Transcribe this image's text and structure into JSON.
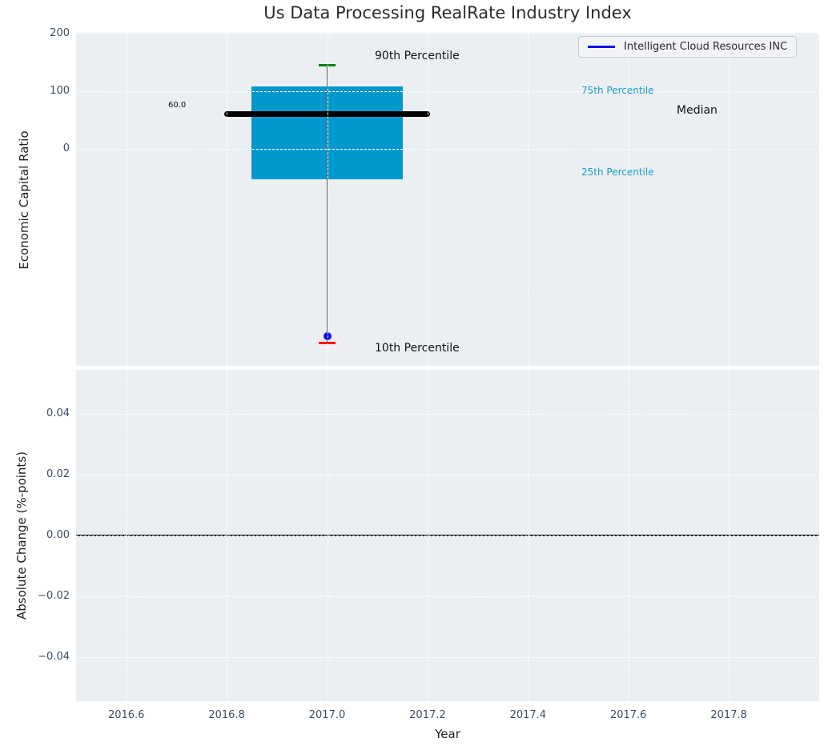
{
  "title": "Us Data Processing RealRate Industry Index",
  "legend": {
    "label": "Intelligent Cloud Resources INC",
    "line_color": "#0f0fe6"
  },
  "annotations": {
    "p90": "90th Percentile",
    "p10": "10th Percentile",
    "p75": "75th Percentile",
    "p25": "25th Percentile",
    "median": "Median",
    "median_value": "60.0"
  },
  "axes": {
    "top": {
      "ylabel": "Economic Capital Ratio",
      "yticks": [
        {
          "v": 200,
          "t": "200"
        },
        {
          "v": 100,
          "t": "100"
        },
        {
          "v": 0,
          "t": "0"
        }
      ]
    },
    "bottom": {
      "ylabel": "Absolute Change (%-points)",
      "xlabel": "Year",
      "yticks": [
        {
          "v": 0.04,
          "t": "0.04"
        },
        {
          "v": 0.02,
          "t": "0.02"
        },
        {
          "v": 0,
          "t": "0.00"
        },
        {
          "v": -0.02,
          "t": "−0.02"
        },
        {
          "v": -0.04,
          "t": "−0.04"
        }
      ],
      "xticks": [
        {
          "v": 2016.6,
          "t": "2016.6"
        },
        {
          "v": 2016.8,
          "t": "2016.8"
        },
        {
          "v": 2017.0,
          "t": "2017.0"
        },
        {
          "v": 2017.2,
          "t": "2017.2"
        },
        {
          "v": 2017.4,
          "t": "2017.4"
        },
        {
          "v": 2017.6,
          "t": "2017.6"
        },
        {
          "v": 2017.8,
          "t": "2017.8"
        }
      ]
    }
  },
  "colors": {
    "figure_bg": "#ffffff",
    "plot_bg": "#eceff1",
    "grid": "#ffffff",
    "tick_label": "#3d4e60",
    "text": "#1f1f1f",
    "box_fill": "#0099ce",
    "median": "#000000",
    "whisker": "#606060",
    "cap_90": "#008000",
    "cap_10": "#ff0000",
    "company_dot": "#0f0fe6",
    "percentile_label": "#1a9fcb",
    "zero_line": "#000000"
  },
  "chart_data": [
    {
      "type": "box",
      "title": "Us Data Processing RealRate Industry Index",
      "ylabel": "Economic Capital Ratio",
      "xlabel": "Year",
      "x": 2017.0,
      "box_width": 0.3,
      "median_line_halfwidth": 0.205,
      "percentiles": {
        "p90": 145,
        "p75": 108,
        "median": 60.0,
        "p25": -53,
        "p10": -337
      },
      "company_point": {
        "name": "Intelligent Cloud Resources INC",
        "x": 2017.0,
        "y": -326
      },
      "ylim": [
        -377,
        201
      ],
      "xlim": [
        2016.5,
        2017.98
      ],
      "yticks": [
        200,
        100,
        0
      ],
      "grid": true,
      "legend_position": "upper right"
    },
    {
      "type": "line",
      "ylabel": "Absolute Change (%-points)",
      "xlabel": "Year",
      "series": [
        {
          "name": "zero-reference-line",
          "x": [
            2016.5,
            2017.98
          ],
          "y": [
            0,
            0
          ],
          "color": "#000000"
        }
      ],
      "ylim": [
        -0.0545,
        0.0545
      ],
      "xlim": [
        2016.5,
        2017.98
      ],
      "yticks": [
        0.04,
        0.02,
        0.0,
        -0.02,
        -0.04
      ],
      "xticks": [
        2016.6,
        2016.8,
        2017.0,
        2017.2,
        2017.4,
        2017.6,
        2017.8
      ],
      "grid": true
    }
  ]
}
